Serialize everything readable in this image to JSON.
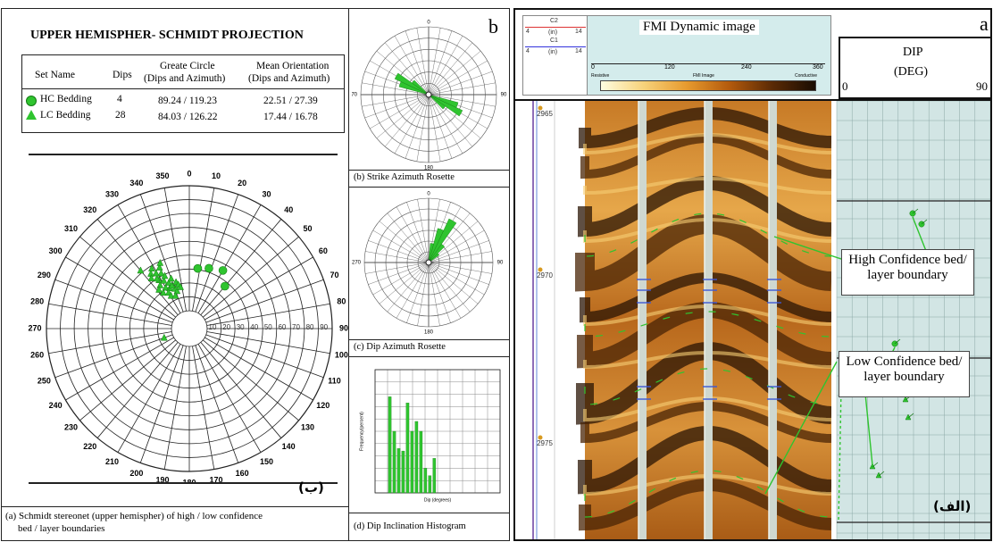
{
  "left": {
    "title": "UPPER HEMISPHER- SCHMIDT PROJECTION",
    "panel_letter": "b",
    "table": {
      "col_set": "Set Name",
      "col_dips": "Dips",
      "col_gc": "Greate Circle",
      "col_gc_sub": "(Dips and Azimuth)",
      "col_mo": "Mean Orientation",
      "col_mo_sub": "(Dips and Azimuth)",
      "rows": [
        {
          "name": "HC Bedding",
          "dips": "4",
          "gc": "89.24 / 119.23",
          "mo": "22.51 / 27.39"
        },
        {
          "name": "LC Bedding",
          "dips": "28",
          "gc": "84.03 / 126.22",
          "mo": "17.44 / 16.78"
        }
      ]
    },
    "stereonet_caption_1": "(a)  Schmidt stereonet (upper hemispher) of high / low confidence",
    "stereonet_caption_2": "bed / layer boundaries",
    "arabic_label": "(ب)",
    "strike_caption": "(b) Strike Azimuth Rosette",
    "dip_caption": "(c) Dip Azimuth Rosette",
    "hist_caption": "(d) Dip Inclination Histogram",
    "hist_ylabel": "Frequency(percent)",
    "hist_xlabel": "Dip (degrees)",
    "azimuth_labels": [
      "350",
      "0",
      "10",
      "20",
      "30",
      "40",
      "50",
      "60",
      "70",
      "80",
      "90",
      "100",
      "110",
      "120",
      "130",
      "140",
      "150",
      "160",
      "170",
      "180",
      "190",
      "200",
      "210",
      "220",
      "230",
      "240",
      "250",
      "260",
      "270",
      "280",
      "290",
      "300",
      "310",
      "320",
      "330",
      "340"
    ],
    "dip_scale": [
      "10",
      "20",
      "30",
      "40",
      "50",
      "60",
      "70",
      "80",
      "90"
    ],
    "rosette_ticks": [
      "0",
      "90",
      "180",
      "270"
    ]
  },
  "right": {
    "panel_letter": "a",
    "header_c2": "C2",
    "header_c1": "C1",
    "header_scale_left": "4",
    "header_scale_unit": "(in)",
    "header_scale_right": "14",
    "fmi_title": "FMI Dynamic image",
    "fmi_scale": [
      "0",
      "120",
      "240",
      "360"
    ],
    "fmi_colorbar_left": "Resistive",
    "fmi_colorbar_mid": "FMI Image",
    "fmi_colorbar_right": "Conductive",
    "dip_title": "DIP",
    "dip_unit": "(DEG)",
    "dip_min": "0",
    "dip_max": "90",
    "depths": [
      "2965",
      "2970",
      "2975"
    ],
    "hc_label_1": "High Confidence bed/",
    "hc_label_2": "layer boundary",
    "lc_label_1": "Low Confidence bed/",
    "lc_label_2": "layer boundary",
    "arabic_label": "(الف)"
  },
  "colors": {
    "accent_green": "#2fc42f",
    "fmi_dark": "#3a1c06",
    "fmi_light": "#f4c05a"
  }
}
